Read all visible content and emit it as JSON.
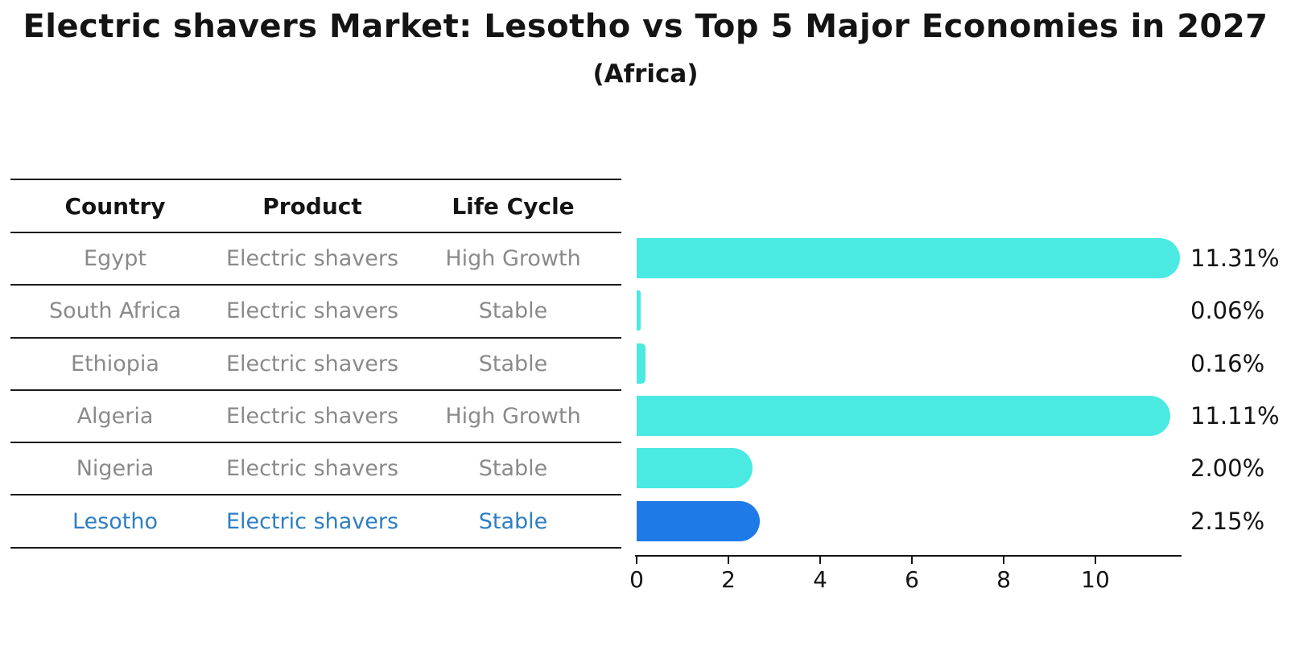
{
  "title": "Electric shavers Market: Lesotho vs Top 5 Major Economies in 2027",
  "subtitle": "(Africa)",
  "table": {
    "headers": [
      "Country",
      "Product",
      "Life Cycle"
    ],
    "rows": [
      {
        "country": "Egypt",
        "product": "Electric shavers",
        "life_cycle": "High Growth",
        "highlight": false
      },
      {
        "country": "South Africa",
        "product": "Electric shavers",
        "life_cycle": "Stable",
        "highlight": false
      },
      {
        "country": "Ethiopia",
        "product": "Electric shavers",
        "life_cycle": "Stable",
        "highlight": false
      },
      {
        "country": "Algeria",
        "product": "Electric shavers",
        "life_cycle": "High Growth",
        "highlight": false
      },
      {
        "country": "Nigeria",
        "product": "Electric shavers",
        "life_cycle": "Stable",
        "highlight": false
      },
      {
        "country": "Lesotho",
        "product": "Electric shavers",
        "life_cycle": "Stable",
        "highlight": true
      }
    ]
  },
  "chart_data": {
    "type": "bar",
    "orientation": "horizontal",
    "title": "Electric shavers Market: Lesotho vs Top 5 Major Economies in 2027",
    "subtitle": "(Africa)",
    "categories": [
      "Egypt",
      "South Africa",
      "Ethiopia",
      "Algeria",
      "Nigeria",
      "Lesotho"
    ],
    "values": [
      11.31,
      0.06,
      0.16,
      11.11,
      2.0,
      2.15
    ],
    "value_labels": [
      "11.31%",
      "0.06%",
      "0.16%",
      "11.11%",
      "2.00%",
      "2.15%"
    ],
    "unit": "percent",
    "x_ticks": [
      0,
      2,
      4,
      6,
      8,
      10
    ],
    "xlim": [
      0,
      11.9
    ],
    "grid": false,
    "legend": false,
    "highlight_index": 5,
    "bar_color": "#4AE9E2",
    "highlight_bar_color": "#1E7AE6",
    "highlight_border_color": "#1E7AE6",
    "highlight_text_color": "#2E7EC4",
    "text_color": "#141414",
    "muted_text_color": "#8a8a8a"
  }
}
